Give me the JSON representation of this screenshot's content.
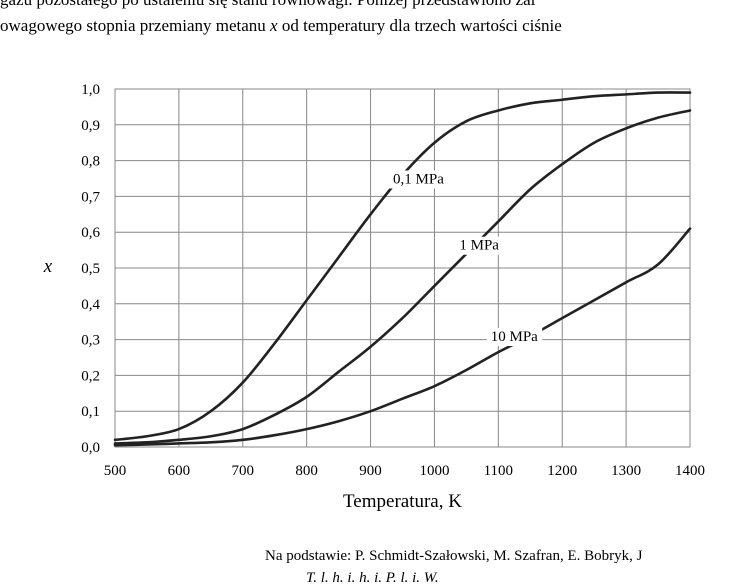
{
  "header_text": {
    "line1": "gazu pozostałego po ustaleniu się stanu równowagi. Poniżej przedstawiono zal",
    "line2_prefix": "owagowego stopnia przemiany metanu ",
    "line2_var": "x",
    "line2_suffix": " od temperatury dla trzech wartości ciśnie"
  },
  "footnote": {
    "line1": "Na podstawie: P. Schmidt-Szałowski, M. Szafran, E. Bobryk, J",
    "line2": "T. l. h. i. h. i. P. l. i. W."
  },
  "chart_data": {
    "type": "line",
    "title": "",
    "xlabel": "Temperatura, K",
    "ylabel": "x",
    "xlim": [
      500,
      1400
    ],
    "ylim": [
      0.0,
      1.0
    ],
    "x_ticks": [
      500,
      600,
      700,
      800,
      900,
      1000,
      1100,
      1200,
      1300,
      1400
    ],
    "x_tick_labels": [
      "500",
      "600",
      "700",
      "800",
      "900",
      "1000",
      "1100",
      "1200",
      "1300",
      "1400"
    ],
    "y_ticks": [
      0.0,
      0.1,
      0.2,
      0.3,
      0.4,
      0.5,
      0.6,
      0.7,
      0.8,
      0.9,
      1.0
    ],
    "y_tick_labels": [
      "0,0",
      "0,1",
      "0,2",
      "0,3",
      "0,4",
      "0,5",
      "0,6",
      "0,7",
      "0,8",
      "0,9",
      "1,0"
    ],
    "grid": true,
    "legend": "none",
    "line_color": "#222222",
    "grid_color": "#888888",
    "series": [
      {
        "name": "0,1 MPa",
        "label_at": [
          975,
          0.75
        ],
        "x": [
          500,
          550,
          600,
          650,
          700,
          750,
          800,
          850,
          900,
          950,
          1000,
          1050,
          1100,
          1150,
          1200,
          1250,
          1300,
          1350,
          1400
        ],
        "y": [
          0.02,
          0.03,
          0.05,
          0.1,
          0.18,
          0.29,
          0.41,
          0.53,
          0.65,
          0.76,
          0.85,
          0.91,
          0.94,
          0.96,
          0.97,
          0.98,
          0.985,
          0.99,
          0.99
        ]
      },
      {
        "name": "1 MPa",
        "label_at": [
          1070,
          0.565
        ],
        "x": [
          500,
          550,
          600,
          650,
          700,
          750,
          800,
          850,
          900,
          950,
          1000,
          1050,
          1100,
          1150,
          1200,
          1250,
          1300,
          1350,
          1400
        ],
        "y": [
          0.01,
          0.013,
          0.02,
          0.03,
          0.05,
          0.09,
          0.14,
          0.21,
          0.28,
          0.36,
          0.45,
          0.54,
          0.63,
          0.72,
          0.79,
          0.85,
          0.89,
          0.92,
          0.94
        ]
      },
      {
        "name": "10 MPa",
        "label_at": [
          1125,
          0.31
        ],
        "x": [
          500,
          550,
          600,
          650,
          700,
          750,
          800,
          850,
          900,
          950,
          1000,
          1050,
          1100,
          1150,
          1200,
          1250,
          1300,
          1350,
          1400
        ],
        "y": [
          0.005,
          0.007,
          0.01,
          0.013,
          0.02,
          0.033,
          0.05,
          0.072,
          0.1,
          0.135,
          0.17,
          0.215,
          0.265,
          0.31,
          0.36,
          0.41,
          0.46,
          0.51,
          0.61
        ]
      }
    ]
  }
}
